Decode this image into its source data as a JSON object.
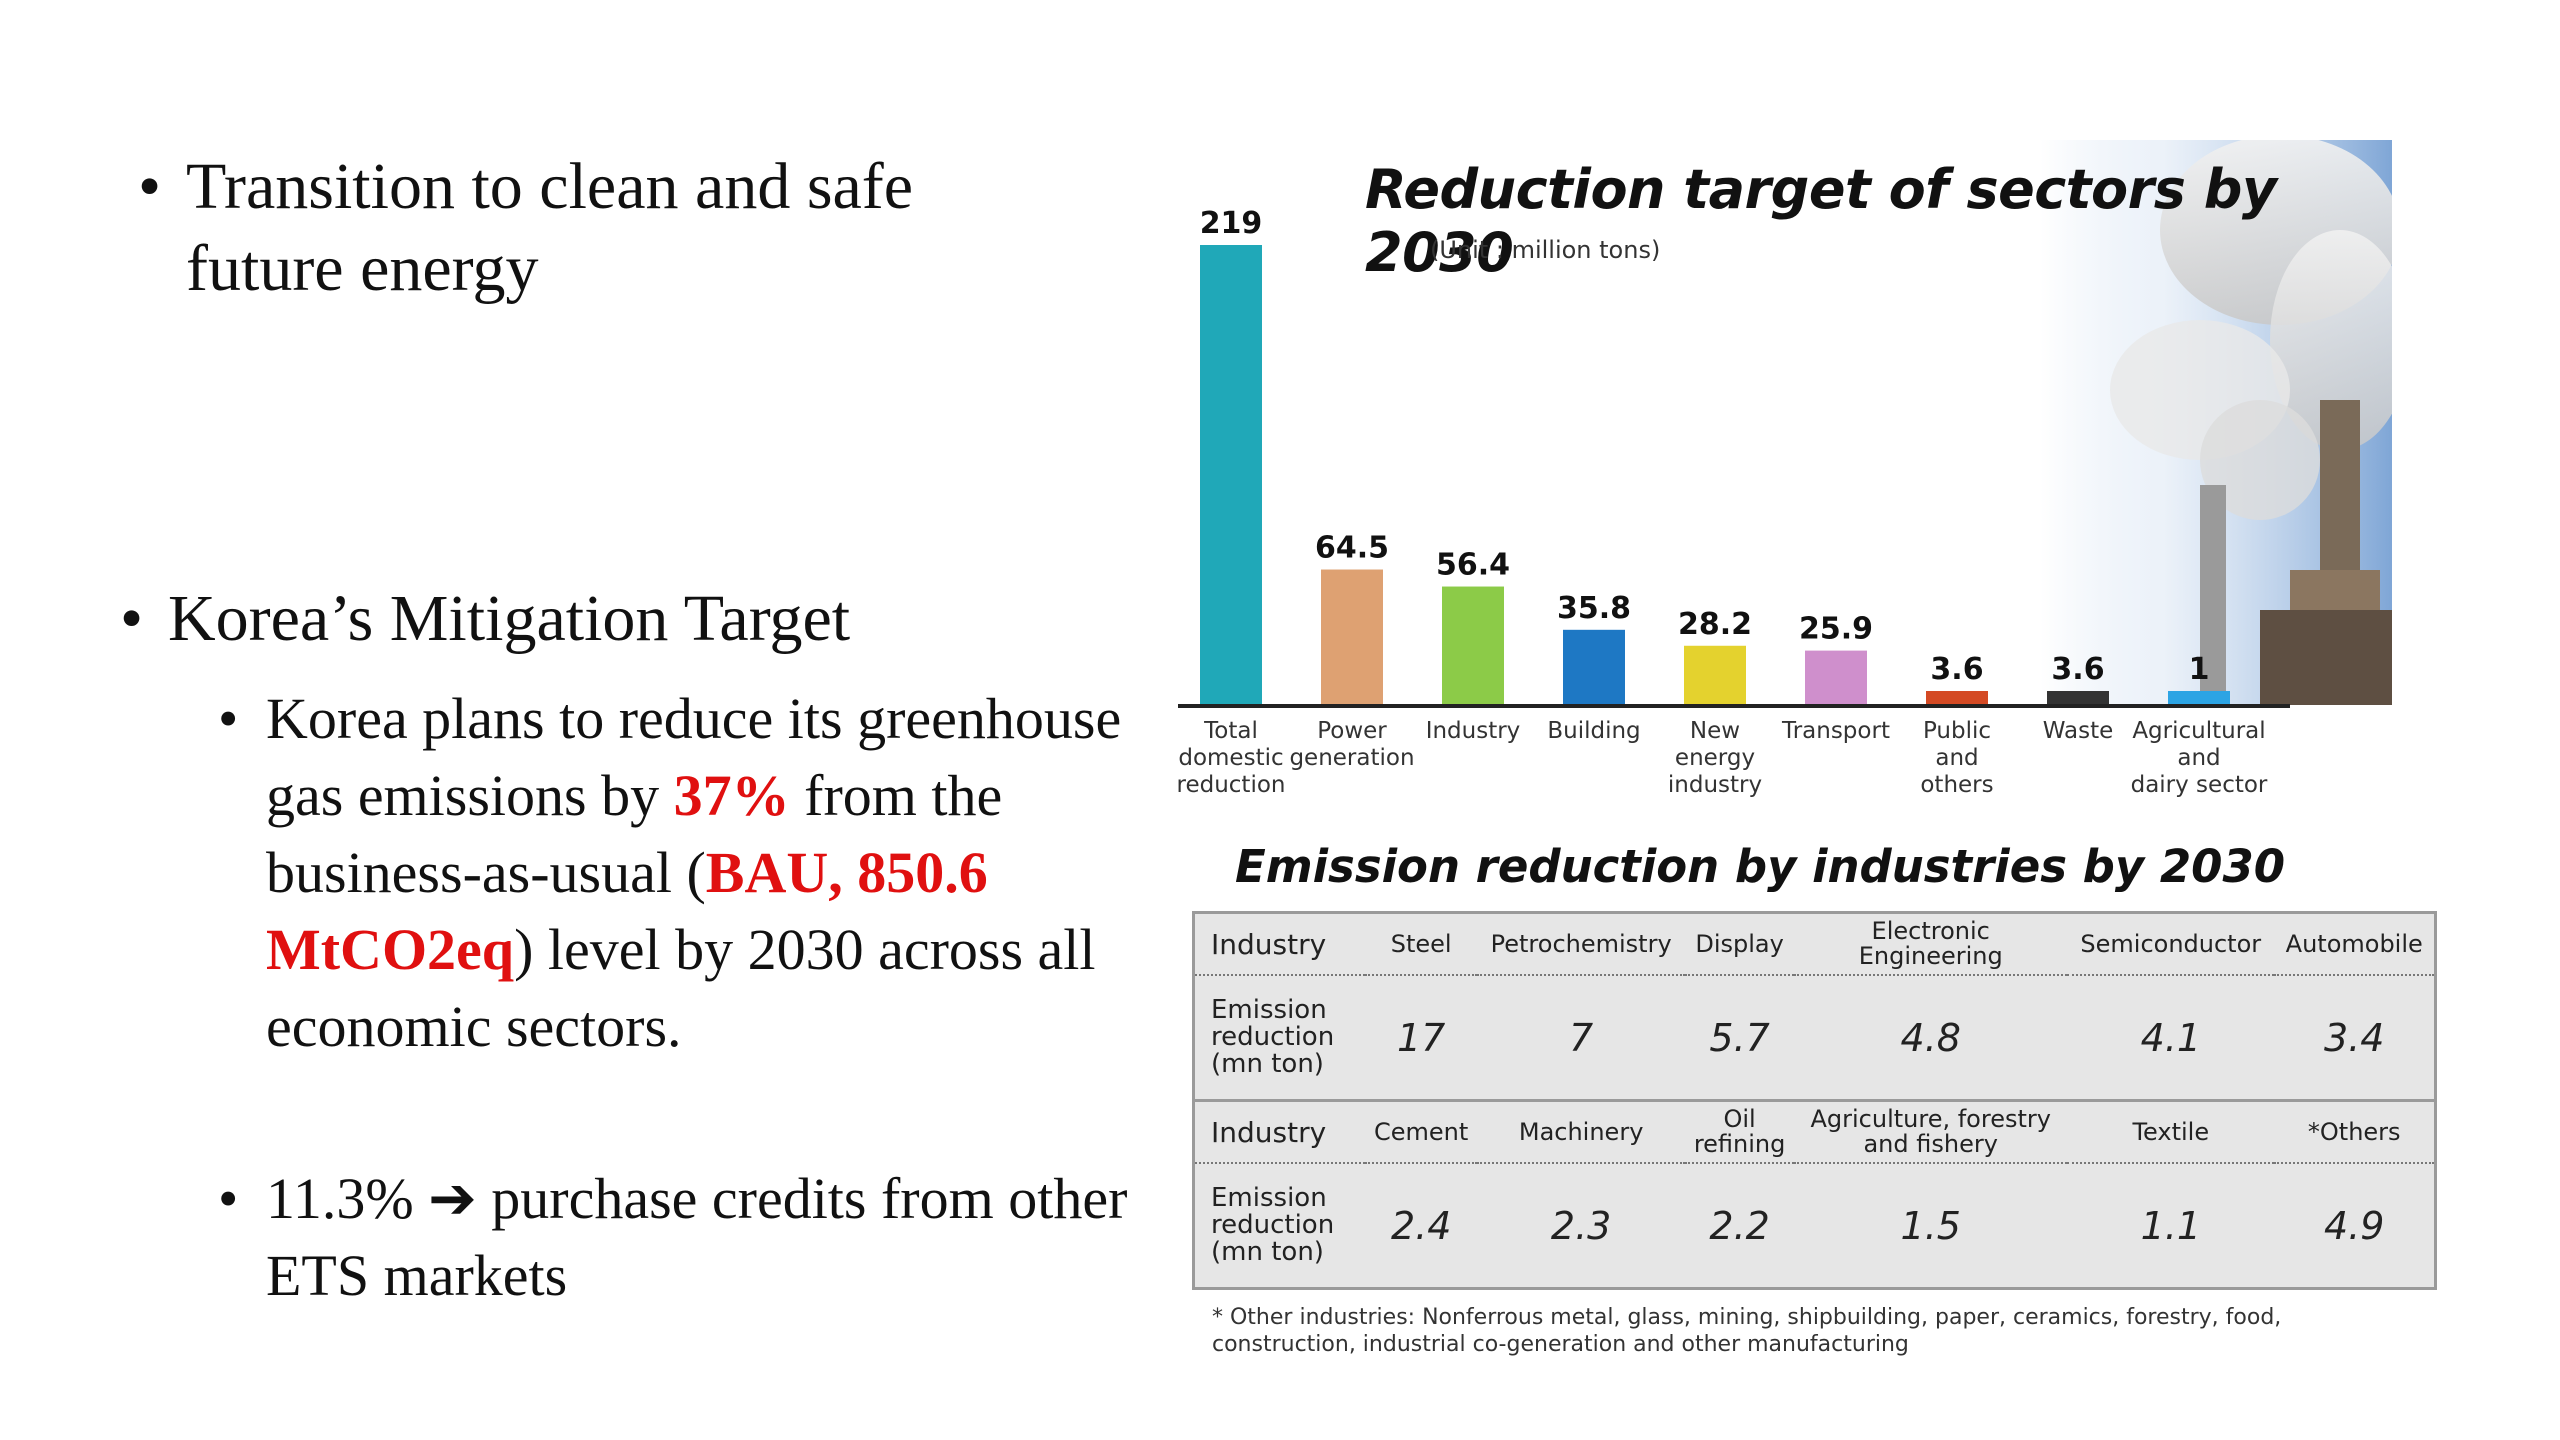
{
  "left": {
    "bullet1": "Transition to clean and safe future energy",
    "bullet2": "Korea’s Mitigation Target",
    "sub1": {
      "text_a": "Korea plans to reduce its greenhouse gas emissions by ",
      "pct": "37%",
      "text_b": " from the business-as-usual (",
      "bau": "BAU, 850.6 MtCO2eq",
      "text_c": ") level by 2030 across all economic sectors."
    },
    "sub2": {
      "text_a": "11.3% ",
      "arrow": "➔",
      "text_b": " purchase credits from other ETS markets"
    },
    "bullet_char": "•"
  },
  "chart_data": {
    "type": "bar",
    "title": "Reduction target of sectors by 2030",
    "unit": "(Unit : million tons)",
    "categories": [
      [
        "Total",
        "domestic",
        "reduction"
      ],
      [
        "Power",
        "generation"
      ],
      [
        "Industry"
      ],
      [
        "Building"
      ],
      [
        "New",
        "energy",
        "industry"
      ],
      [
        "Transport"
      ],
      [
        "Public",
        "and",
        "others"
      ],
      [
        "Waste"
      ],
      [
        "Agricultural",
        "and",
        "dairy sector"
      ]
    ],
    "values": [
      219,
      64.5,
      56.4,
      35.8,
      28.2,
      25.9,
      3.6,
      3.6,
      1
    ],
    "value_labels": [
      "219",
      "64.5",
      "56.4",
      "35.8",
      "28.2",
      "25.9",
      "3.6",
      "3.6",
      "1"
    ],
    "colors": [
      "#20a8b8",
      "#dea172",
      "#8ccb48",
      "#1e78c4",
      "#e4d22e",
      "#cf8fcc",
      "#d44a24",
      "#333333",
      "#2ca4e4"
    ],
    "ylim": [
      0,
      219
    ],
    "grid": false,
    "legend": "none"
  },
  "table": {
    "title": "Emission reduction by industries by 2030",
    "row_header": "Industry",
    "row_value_label": [
      "Emission",
      "reduction",
      "(mn ton)"
    ],
    "row1_industries": [
      [
        "Steel"
      ],
      [
        "Petrochemistry"
      ],
      [
        "Display"
      ],
      [
        "Electronic",
        "Engineering"
      ],
      [
        "Semiconductor"
      ],
      [
        "Automobile"
      ]
    ],
    "row1_values": [
      "17",
      "7",
      "5.7",
      "4.8",
      "4.1",
      "3.4"
    ],
    "row2_industries": [
      [
        "Cement"
      ],
      [
        "Machinery"
      ],
      [
        "Oil",
        "refining"
      ],
      [
        "Agriculture, forestry",
        "and fishery"
      ],
      [
        "Textile"
      ],
      [
        "*Others"
      ]
    ],
    "row2_values": [
      "2.4",
      "2.3",
      "2.2",
      "1.5",
      "1.1",
      "4.9"
    ],
    "footnote": "* Other industries: Nonferrous metal, glass, mining, shipbuilding, paper, ceramics, forestry, food, construction, industrial co-generation and other manufacturing"
  }
}
